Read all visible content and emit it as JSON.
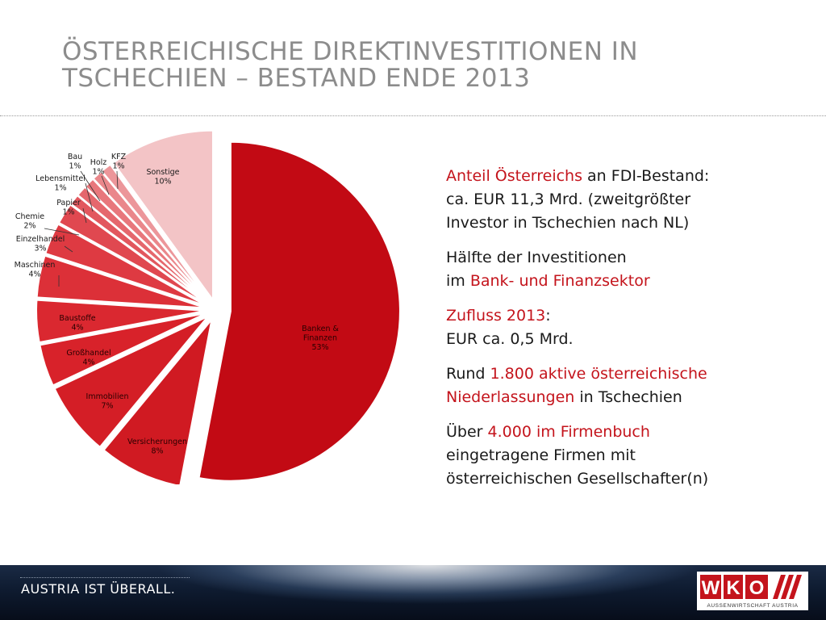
{
  "slide": {
    "title_line1": "ÖSTERREICHISCHE DIREKTINVESTITIONEN IN",
    "title_line2": "TSCHECHIEN – BESTAND ENDE 2013"
  },
  "chart_data": {
    "type": "pie",
    "title": "",
    "slices": [
      {
        "label": "Banken &\nFinanzen",
        "value": 53,
        "pct_label": "53%",
        "color": "#c20a14",
        "label_color": "#2a0000"
      },
      {
        "label": "Versicherungen",
        "value": 8,
        "pct_label": "8%",
        "color": "#d01a22",
        "label_color": "#2a0000"
      },
      {
        "label": "Immobilien",
        "value": 7,
        "pct_label": "7%",
        "color": "#d41e26",
        "label_color": "#2a0000"
      },
      {
        "label": "Großhandel",
        "value": 4,
        "pct_label": "4%",
        "color": "#d8222a",
        "label_color": "#2a0000"
      },
      {
        "label": "Baustoffe",
        "value": 4,
        "pct_label": "4%",
        "color": "#da2830",
        "label_color": "#2a0000"
      },
      {
        "label": "Maschinen",
        "value": 4,
        "pct_label": "4%",
        "color": "#dc3038",
        "label_color": "#1a1a1a"
      },
      {
        "label": "Einzelhandel",
        "value": 3,
        "pct_label": "3%",
        "color": "#de3a42",
        "label_color": "#1a1a1a"
      },
      {
        "label": "Chemie",
        "value": 2,
        "pct_label": "2%",
        "color": "#e04850",
        "label_color": "#1a1a1a"
      },
      {
        "label": "Papier",
        "value": 1,
        "pct_label": "1%",
        "color": "#e2575e",
        "label_color": "#1a1a1a"
      },
      {
        "label": "Lebensmittel",
        "value": 1,
        "pct_label": "1%",
        "color": "#e5676d",
        "label_color": "#1a1a1a"
      },
      {
        "label": "Bau",
        "value": 1,
        "pct_label": "1%",
        "color": "#e8777c",
        "label_color": "#1a1a1a"
      },
      {
        "label": "Holz",
        "value": 1,
        "pct_label": "1%",
        "color": "#ea878b",
        "label_color": "#1a1a1a"
      },
      {
        "label": "KFZ",
        "value": 1,
        "pct_label": "1%",
        "color": "#ec969a",
        "label_color": "#1a1a1a"
      },
      {
        "label": "Sonstige",
        "value": 10,
        "pct_label": "10%",
        "color": "#f3c4c6",
        "label_color": "#1a1a1a"
      }
    ]
  },
  "info": {
    "p1": {
      "a": "Anteil Österreichs",
      "b": " an FDI-Bestand:",
      "c": "ca. EUR 11,3 Mrd. (zweitgrößter",
      "d": "Investor in Tschechien nach NL)"
    },
    "p2": {
      "a": "Hälfte der Investitionen",
      "b": "im ",
      "c": "Bank- und Finanzsektor"
    },
    "p3": {
      "a": "Zufluss 2013",
      "b": ":",
      "c": "EUR ca. 0,5 Mrd."
    },
    "p4": {
      "a": "Rund ",
      "b": "1.800 aktive österreichische",
      "c": "Niederlassungen",
      "d": " in Tschechien"
    },
    "p5": {
      "a": "Über ",
      "b": "4.000 im Firmenbuch",
      "c": "eingetragene Firmen mit",
      "d": "österreichischen Gesellschafter(n)"
    }
  },
  "footer": {
    "slogan": "AUSTRIA IST ÜBERALL.",
    "logo_text": "WKO",
    "logo_sub": "AUSSENWIRTSCHAFT AUSTRIA"
  },
  "colors": {
    "accent": "#c4141c",
    "title": "#8c8c8c"
  }
}
